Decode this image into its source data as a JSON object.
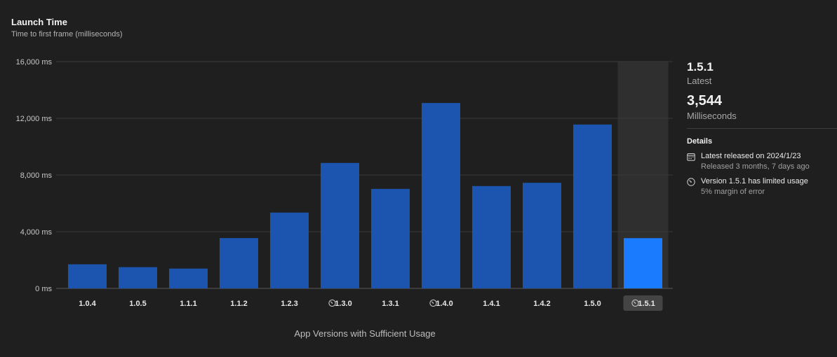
{
  "header": {
    "title": "Launch Time",
    "subtitle": "Time to first frame (milliseconds)"
  },
  "chart_data": {
    "type": "bar",
    "title": "Launch Time",
    "subtitle": "Time to first frame (milliseconds)",
    "xlabel": "App Versions with Sufficient Usage",
    "ylabel": "",
    "ylim": [
      0,
      16000
    ],
    "yticks": [
      0,
      4000,
      8000,
      12000,
      16000
    ],
    "ytick_labels": [
      "0 ms",
      "4,000 ms",
      "8,000 ms",
      "12,000 ms",
      "16,000 ms"
    ],
    "categories": [
      "1.0.4",
      "1.0.5",
      "1.1.1",
      "1.1.2",
      "1.2.3",
      "1.3.0",
      "1.3.1",
      "1.4.0",
      "1.4.1",
      "1.4.2",
      "1.5.0",
      "1.5.1"
    ],
    "values": [
      1700,
      1500,
      1400,
      3550,
      5350,
      8850,
      7020,
      13080,
      7220,
      7450,
      11560,
      3544
    ],
    "limited_usage": [
      false,
      false,
      false,
      false,
      false,
      true,
      false,
      true,
      false,
      false,
      false,
      true
    ],
    "selected": "1.5.1",
    "grid": true,
    "colors": {
      "bar": "#1b55b0",
      "selected_bar": "#1a7bff",
      "selected_band": "#2f2f2f"
    }
  },
  "sidebar": {
    "version": "1.5.1",
    "version_caption": "Latest",
    "value": "3,544",
    "value_caption": "Milliseconds",
    "details_title": "Details",
    "details": [
      {
        "icon": "calendar-icon",
        "main": "Latest released on 2024/1/23",
        "sub": "Released 3 months, 7 days ago"
      },
      {
        "icon": "gauge-icon",
        "main": "Version 1.5.1 has limited usage",
        "sub": "5% margin of error"
      }
    ]
  }
}
